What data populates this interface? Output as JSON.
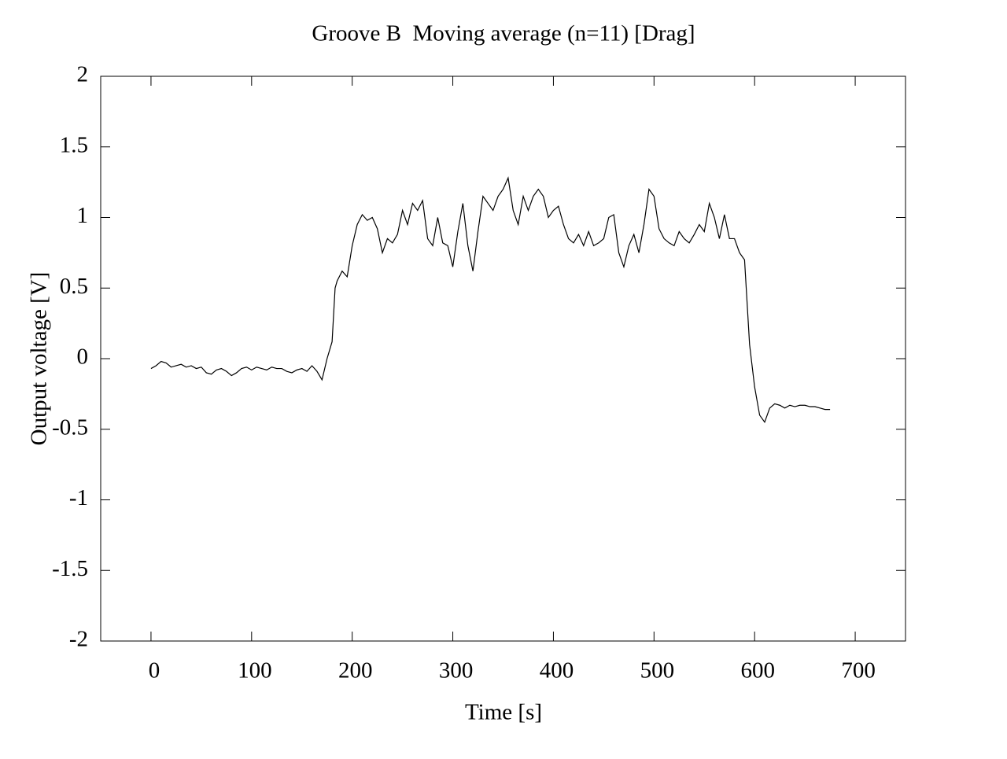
{
  "chart_data": {
    "type": "line",
    "title": "Groove B  Moving average (n=11) [Drag]",
    "xlabel": "Time [s]",
    "ylabel": "Output voltage [V]",
    "xlim": [
      -50,
      750
    ],
    "ylim": [
      -2,
      2
    ],
    "xticks": [
      0,
      100,
      200,
      300,
      400,
      500,
      600,
      700
    ],
    "yticks": [
      -2,
      -1.5,
      -1,
      -0.5,
      0,
      0.5,
      1,
      1.5,
      2
    ],
    "grid": false,
    "color": "#000000",
    "x": [
      0,
      5,
      10,
      15,
      20,
      25,
      30,
      35,
      40,
      45,
      50,
      55,
      60,
      65,
      70,
      75,
      80,
      85,
      90,
      95,
      100,
      105,
      110,
      115,
      120,
      125,
      130,
      135,
      140,
      145,
      150,
      155,
      160,
      165,
      170,
      175,
      180,
      183,
      185,
      190,
      195,
      200,
      205,
      210,
      215,
      220,
      225,
      230,
      235,
      240,
      245,
      250,
      255,
      260,
      265,
      270,
      275,
      280,
      285,
      290,
      295,
      300,
      305,
      310,
      315,
      320,
      325,
      330,
      335,
      340,
      345,
      350,
      355,
      360,
      365,
      370,
      375,
      380,
      385,
      390,
      395,
      400,
      405,
      410,
      415,
      420,
      425,
      430,
      435,
      440,
      445,
      450,
      455,
      460,
      465,
      470,
      475,
      480,
      485,
      490,
      495,
      500,
      505,
      510,
      515,
      520,
      525,
      530,
      535,
      540,
      545,
      550,
      555,
      560,
      565,
      570,
      575,
      580,
      585,
      590,
      595,
      600,
      605,
      610,
      615,
      620,
      625,
      630,
      635,
      640,
      645,
      650,
      655,
      660,
      665,
      670,
      675
    ],
    "values": [
      -0.07,
      -0.05,
      -0.02,
      -0.03,
      -0.06,
      -0.05,
      -0.04,
      -0.06,
      -0.05,
      -0.07,
      -0.06,
      -0.1,
      -0.11,
      -0.08,
      -0.07,
      -0.09,
      -0.12,
      -0.1,
      -0.07,
      -0.06,
      -0.08,
      -0.06,
      -0.07,
      -0.08,
      -0.06,
      -0.07,
      -0.07,
      -0.09,
      -0.1,
      -0.08,
      -0.07,
      -0.09,
      -0.05,
      -0.09,
      -0.15,
      0,
      0.12,
      0.5,
      0.55,
      0.62,
      0.58,
      0.8,
      0.95,
      1.02,
      0.98,
      1.0,
      0.92,
      0.75,
      0.85,
      0.82,
      0.88,
      1.05,
      0.95,
      1.1,
      1.05,
      1.12,
      0.85,
      0.8,
      1.0,
      0.82,
      0.8,
      0.65,
      0.9,
      1.1,
      0.8,
      0.62,
      0.9,
      1.15,
      1.1,
      1.05,
      1.15,
      1.2,
      1.28,
      1.05,
      0.95,
      1.15,
      1.05,
      1.15,
      1.2,
      1.15,
      1.0,
      1.05,
      1.08,
      0.95,
      0.85,
      0.82,
      0.88,
      0.8,
      0.9,
      0.8,
      0.82,
      0.85,
      1.0,
      1.02,
      0.75,
      0.65,
      0.8,
      0.88,
      0.75,
      0.95,
      1.2,
      1.15,
      0.92,
      0.85,
      0.82,
      0.8,
      0.9,
      0.85,
      0.82,
      0.88,
      0.95,
      0.9,
      1.1,
      1.0,
      0.85,
      1.02,
      0.85,
      0.85,
      0.75,
      0.7,
      0.1,
      -0.2,
      -0.4,
      -0.45,
      -0.35,
      -0.32,
      -0.33,
      -0.35,
      -0.33,
      -0.34,
      -0.33,
      -0.33,
      -0.34,
      -0.34,
      -0.35,
      -0.36,
      -0.36
    ]
  }
}
